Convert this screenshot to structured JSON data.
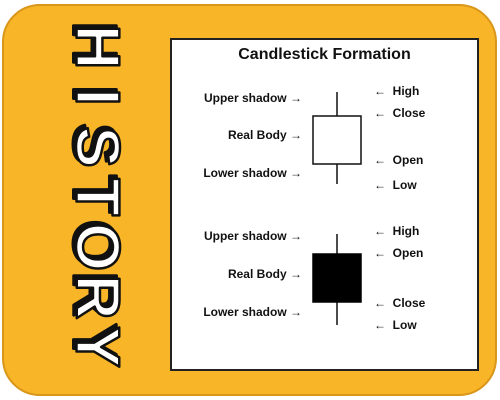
{
  "side_title": "HISTORY",
  "diagram": {
    "title": "Candlestick Formation",
    "bullish": {
      "left_labels": [
        "Upper shadow",
        "Real Body",
        "Lower shadow"
      ],
      "right_labels": [
        "High",
        "Close",
        "Open",
        "Low"
      ]
    },
    "bearish": {
      "left_labels": [
        "Upper shadow",
        "Real Body",
        "Lower shadow"
      ],
      "right_labels": [
        "High",
        "Open",
        "Close",
        "Low"
      ]
    }
  },
  "glyphs": {
    "arrow_right": "→",
    "arrow_left": "←"
  },
  "colors": {
    "frame": "#f8b527",
    "bull_body": "#ffffff",
    "bear_body": "#000000"
  }
}
